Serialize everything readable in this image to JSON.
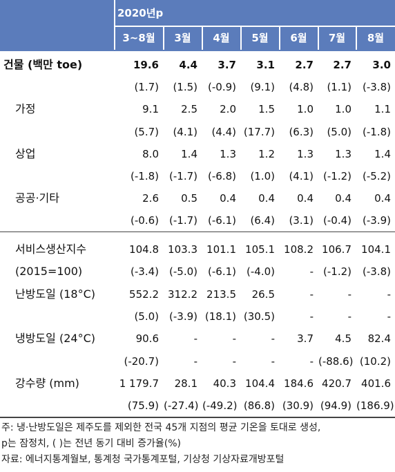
{
  "header": {
    "title": "2020년p",
    "columns": [
      "3~8월",
      "3월",
      "4월",
      "5월",
      "6월",
      "7월",
      "8월"
    ]
  },
  "rows": [
    {
      "label": "건물 (백만 toe)",
      "cells": [
        "19.6",
        "4.4",
        "3.7",
        "3.1",
        "2.7",
        "2.7",
        "3.0"
      ]
    },
    {
      "cells": [
        "(1.7)",
        "(1.5)",
        "(-0.9)",
        "(9.1)",
        "(4.8)",
        "(1.1)",
        "(-3.8)"
      ]
    },
    {
      "label": "가정",
      "cells": [
        "9.1",
        "2.5",
        "2.0",
        "1.5",
        "1.0",
        "1.0",
        "1.1"
      ]
    },
    {
      "cells": [
        "(5.7)",
        "(4.1)",
        "(4.4)",
        "(17.7)",
        "(6.3)",
        "(5.0)",
        "(-1.8)"
      ]
    },
    {
      "label": "상업",
      "cells": [
        "8.0",
        "1.4",
        "1.3",
        "1.2",
        "1.3",
        "1.3",
        "1.4"
      ]
    },
    {
      "cells": [
        "(-1.8)",
        "(-1.7)",
        "(-6.8)",
        "(1.0)",
        "(4.1)",
        "(-1.2)",
        "(-5.2)"
      ]
    },
    {
      "label": "공공·기타",
      "cells": [
        "2.6",
        "0.5",
        "0.4",
        "0.4",
        "0.4",
        "0.4",
        "0.4"
      ]
    },
    {
      "cells": [
        "(-0.6)",
        "(-1.7)",
        "(-6.1)",
        "(6.4)",
        "(3.1)",
        "(-0.4)",
        "(-3.9)"
      ]
    },
    {
      "label": "서비스생산지수",
      "cells": [
        "104.8",
        "103.3",
        "101.1",
        "105.1",
        "108.2",
        "106.7",
        "104.1"
      ]
    },
    {
      "label": "(2015=100)",
      "cells": [
        "(-3.4)",
        "(-5.0)",
        "(-6.1)",
        "(-4.0)",
        "-",
        "(-1.2)",
        "(-3.8)"
      ]
    },
    {
      "label": "난방도일 (18°C)",
      "cells": [
        "552.2",
        "312.2",
        "213.5",
        "26.5",
        "-",
        "-",
        "-"
      ]
    },
    {
      "cells": [
        "(5.0)",
        "(-3.9)",
        "(18.1)",
        "(30.5)",
        "-",
        "-",
        "-"
      ]
    },
    {
      "label": "냉방도일 (24°C)",
      "cells": [
        "90.6",
        "-",
        "-",
        "-",
        "3.7",
        "4.5",
        "82.4"
      ]
    },
    {
      "cells": [
        "(-20.7)",
        "-",
        "-",
        "-",
        "-",
        "(-88.6)",
        "(10.2)"
      ]
    },
    {
      "label": "강수량 (mm)",
      "cells": [
        "1 179.7",
        "28.1",
        "40.3",
        "104.4",
        "184.6",
        "420.7",
        "401.6"
      ]
    },
    {
      "cells": [
        "(75.9)",
        "(-27.4)",
        "(-49.2)",
        "(86.8)",
        "(30.9)",
        "(94.9)",
        "(186.9)"
      ]
    }
  ],
  "notes": [
    "주: 냉·난방도일은 제주도를 제외한 전국 45개 지점의 평균 기온을 토대로 생성,",
    "p는 잠정치, (    )는 전년 동기 대비 증가율(%)",
    "자료: 에너지통계월보, 통계청 국가통계포털, 기상청 기상자료개방포털"
  ]
}
